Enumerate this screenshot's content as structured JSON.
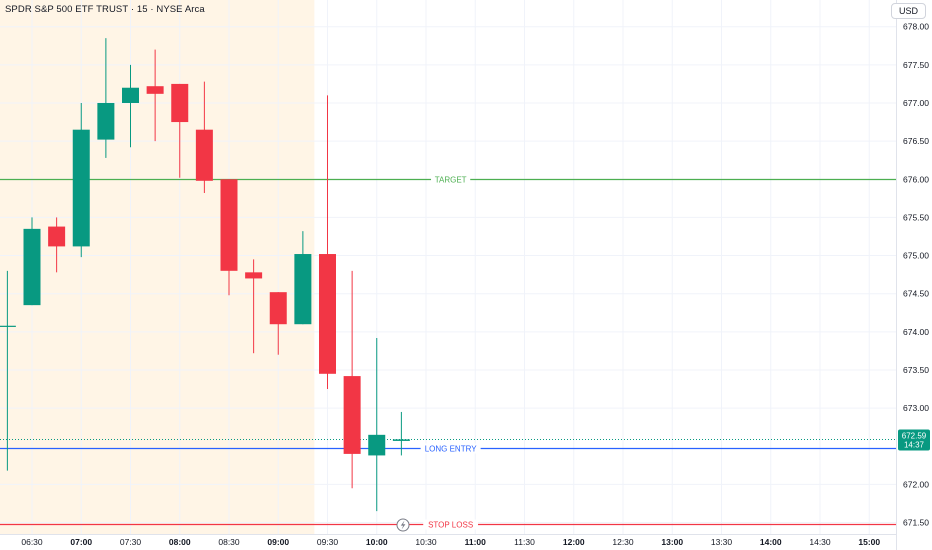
{
  "header": {
    "title": "SPDR S&P 500 ETF TRUST · 15 · NYSE Arca",
    "currency_button": "USD"
  },
  "chart_data": {
    "type": "candlestick",
    "title": "SPDR S&P 500 ETF TRUST · 15 · NYSE Arca",
    "ylim": [
      671.35,
      678.35
    ],
    "y_ticks": [
      {
        "value": 678.0,
        "label": "678.00"
      },
      {
        "value": 677.5,
        "label": "677.50"
      },
      {
        "value": 677.0,
        "label": "677.00"
      },
      {
        "value": 676.5,
        "label": "676.50"
      },
      {
        "value": 676.0,
        "label": "676.00"
      },
      {
        "value": 675.5,
        "label": "675.50"
      },
      {
        "value": 675.0,
        "label": "675.00"
      },
      {
        "value": 674.5,
        "label": "674.50"
      },
      {
        "value": 674.0,
        "label": "674.00"
      },
      {
        "value": 673.5,
        "label": "673.50"
      },
      {
        "value": 673.0,
        "label": "673.00"
      },
      {
        "value": 672.0,
        "label": "672.00"
      },
      {
        "value": 671.5,
        "label": "671.50"
      }
    ],
    "x_ticks": [
      {
        "time": "06:30",
        "label": "06:30",
        "bold": false
      },
      {
        "time": "07:00",
        "label": "07:00",
        "bold": true
      },
      {
        "time": "07:30",
        "label": "07:30",
        "bold": false
      },
      {
        "time": "08:00",
        "label": "08:00",
        "bold": true
      },
      {
        "time": "08:30",
        "label": "08:30",
        "bold": false
      },
      {
        "time": "09:00",
        "label": "09:00",
        "bold": true
      },
      {
        "time": "09:30",
        "label": "09:30",
        "bold": false
      },
      {
        "time": "10:00",
        "label": "10:00",
        "bold": true
      },
      {
        "time": "10:30",
        "label": "10:30",
        "bold": false
      },
      {
        "time": "11:00",
        "label": "11:00",
        "bold": true
      },
      {
        "time": "11:30",
        "label": "11:30",
        "bold": false
      },
      {
        "time": "12:00",
        "label": "12:00",
        "bold": true
      },
      {
        "time": "12:30",
        "label": "12:30",
        "bold": false
      },
      {
        "time": "13:00",
        "label": "13:00",
        "bold": true
      },
      {
        "time": "13:30",
        "label": "13:30",
        "bold": false
      },
      {
        "time": "14:00",
        "label": "14:00",
        "bold": true
      },
      {
        "time": "14:30",
        "label": "14:30",
        "bold": false
      },
      {
        "time": "15:00",
        "label": "15:00",
        "bold": true
      }
    ],
    "candles": [
      {
        "time": "06:15",
        "open": 674.08,
        "high": 674.8,
        "low": 672.18,
        "close": 674.08
      },
      {
        "time": "06:30",
        "open": 674.35,
        "high": 675.5,
        "low": 674.35,
        "close": 675.35
      },
      {
        "time": "06:45",
        "open": 675.38,
        "high": 675.5,
        "low": 674.78,
        "close": 675.12
      },
      {
        "time": "07:00",
        "open": 675.12,
        "high": 677.0,
        "low": 674.98,
        "close": 676.65
      },
      {
        "time": "07:15",
        "open": 676.52,
        "high": 677.85,
        "low": 676.28,
        "close": 677.0
      },
      {
        "time": "07:30",
        "open": 677.0,
        "high": 677.5,
        "low": 676.42,
        "close": 677.2
      },
      {
        "time": "07:45",
        "open": 677.22,
        "high": 677.7,
        "low": 676.5,
        "close": 677.12
      },
      {
        "time": "08:00",
        "open": 677.25,
        "high": 677.25,
        "low": 676.02,
        "close": 676.75
      },
      {
        "time": "08:15",
        "open": 676.65,
        "high": 677.28,
        "low": 675.82,
        "close": 675.98
      },
      {
        "time": "08:30",
        "open": 676.0,
        "high": 676.0,
        "low": 674.48,
        "close": 674.8
      },
      {
        "time": "08:45",
        "open": 674.78,
        "high": 674.95,
        "low": 673.72,
        "close": 674.7
      },
      {
        "time": "09:00",
        "open": 674.52,
        "high": 674.52,
        "low": 673.7,
        "close": 674.1
      },
      {
        "time": "09:15",
        "open": 674.1,
        "high": 675.32,
        "low": 674.1,
        "close": 675.02
      },
      {
        "time": "09:30",
        "open": 675.02,
        "high": 677.1,
        "low": 673.25,
        "close": 673.45
      },
      {
        "time": "09:45",
        "open": 673.42,
        "high": 674.8,
        "low": 671.95,
        "close": 672.4
      },
      {
        "time": "10:00",
        "open": 672.38,
        "high": 673.92,
        "low": 671.65,
        "close": 672.65
      },
      {
        "time": "10:15",
        "open": 672.57,
        "high": 672.95,
        "low": 672.38,
        "close": 672.59
      }
    ],
    "session_shading": {
      "from": "05:30",
      "to": "09:15"
    },
    "levels": [
      {
        "name": "TARGET",
        "value": 676.0,
        "color": "#4caf50"
      },
      {
        "name": "LONG ENTRY",
        "value": 672.48,
        "color": "#2962ff"
      },
      {
        "name": "STOP LOSS",
        "value": 671.48,
        "color": "#f23645"
      }
    ],
    "last_price": {
      "value": 672.59,
      "label": "672.59",
      "countdown": "14:37",
      "color": "#089981"
    },
    "colors": {
      "up": "#089981",
      "down": "#f23645",
      "session_bg": "#fff5e6"
    }
  }
}
